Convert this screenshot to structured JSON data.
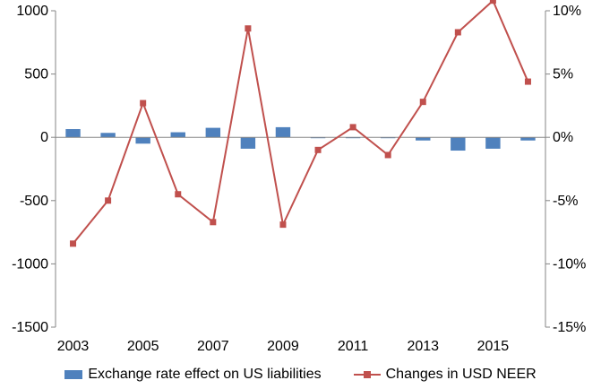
{
  "chart_data": {
    "type": "bar+line",
    "x": [
      2003,
      2004,
      2005,
      2006,
      2007,
      2008,
      2009,
      2010,
      2011,
      2012,
      2013,
      2014,
      2015,
      2016
    ],
    "x_tick_labels": [
      "2003",
      "2005",
      "2007",
      "2009",
      "2011",
      "2013",
      "2015"
    ],
    "series": [
      {
        "name": "Exchange rate effect on US liabilities",
        "type": "bar",
        "axis": "left",
        "color": "#4F81BD",
        "values": [
          65,
          35,
          -50,
          40,
          75,
          -90,
          80,
          -5,
          -5,
          0,
          -25,
          -105,
          -90,
          -25
        ]
      },
      {
        "name": "Changes in USD NEER",
        "type": "line",
        "axis": "right",
        "color": "#C0504D",
        "values": [
          -8.4,
          -5.0,
          2.7,
          -4.5,
          -6.7,
          8.6,
          -6.9,
          -1.0,
          0.8,
          -1.4,
          2.8,
          8.3,
          10.8,
          4.4
        ]
      }
    ],
    "y_left": {
      "ylim": [
        -1500,
        1000
      ],
      "ticks": [
        -1500,
        -1000,
        -500,
        0,
        500,
        1000
      ],
      "tick_labels": [
        "-1500",
        "-1000",
        "-500",
        "0",
        "500",
        "1000"
      ]
    },
    "y_right": {
      "ylim": [
        -15,
        10
      ],
      "ticks": [
        -15,
        -10,
        -5,
        0,
        5,
        10
      ],
      "tick_labels": [
        "-15%",
        "-10%",
        "-5%",
        "0%",
        "5%",
        "10%"
      ]
    },
    "grid": false,
    "legend_position": "bottom"
  }
}
